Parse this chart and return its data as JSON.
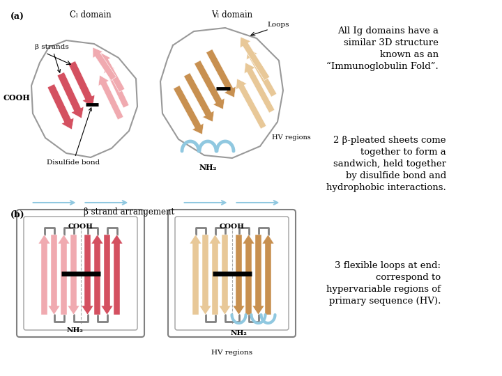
{
  "bg_color": "#ffffff",
  "title_a": "(a)",
  "title_b": "(b)",
  "cl_domain_label": "Cₗ domain",
  "vl_domain_label": "Vₗ domain",
  "loops_label": "Loops",
  "beta_strands_label": "β strands",
  "cooh_label": "COOH",
  "nh2_label": "NH₂",
  "disulfide_label": "Disulfide bond",
  "hv_label": "HV regions",
  "beta_strand_arr_label": "β strand arrangement",
  "text1": "All Ig domains have a\nsimilar 3D structure\nknown as an\n“Immunoglobulin Fold”.",
  "text2": "2 β-pleated sheets come\ntogether to form a\nsandwich, held together\nby disulfide bond and\nhydrophobic interactions.",
  "text3": "3 flexible loops at end:\ncorrespond to\nhypervariable regions of\nprimary sequence (HV).",
  "pink_light": "#f0aab0",
  "pink_dark": "#d45060",
  "tan_light": "#e8c898",
  "tan_dark": "#c89050",
  "blue_light": "#90c8e0",
  "black": "#000000",
  "text_color": "#1a1a1a",
  "font_family": "serif"
}
